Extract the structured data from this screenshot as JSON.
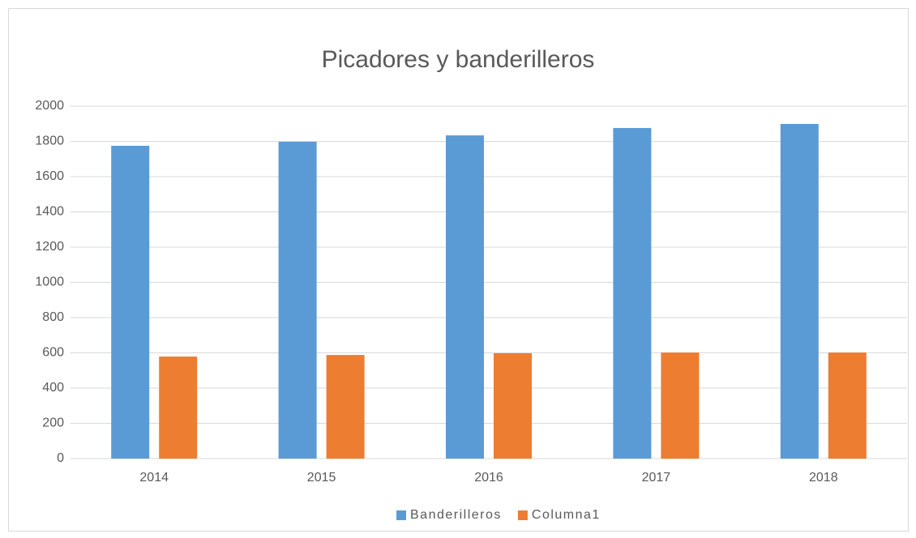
{
  "chart_data": {
    "type": "bar",
    "title": "Picadores y banderilleros",
    "categories": [
      "2014",
      "2015",
      "2016",
      "2017",
      "2018"
    ],
    "series": [
      {
        "name": "Banderilleros",
        "color": "#5b9bd5",
        "values": [
          1775,
          1798,
          1834,
          1876,
          1899
        ]
      },
      {
        "name": "Columna1",
        "color": "#ed7d31",
        "values": [
          579,
          588,
          598,
          602,
          602
        ]
      }
    ],
    "ylim": [
      0,
      2000
    ],
    "yticks": [
      0,
      200,
      400,
      600,
      800,
      1000,
      1200,
      1400,
      1600,
      1800,
      2000
    ],
    "grid": true,
    "legend": "bottom"
  }
}
